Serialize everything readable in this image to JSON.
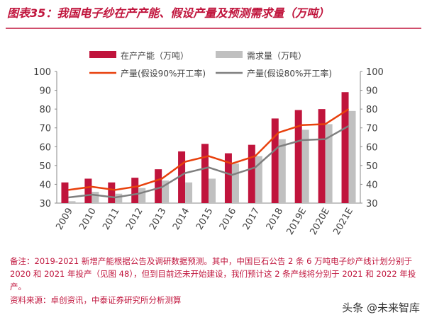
{
  "chart_data": {
    "type": "bar",
    "title": "图表35：我国电子纱在产产能、假设产量及预测需求量（万吨）",
    "categories": [
      "2009",
      "2010",
      "2011",
      "2012",
      "2013",
      "2014",
      "2015",
      "2016",
      "2017",
      "2018",
      "2019E",
      "2020E",
      "2021E"
    ],
    "series": [
      {
        "name": "在产产能（万吨）",
        "type": "bar",
        "color": "#c0143c",
        "values": [
          41,
          43,
          41,
          43.5,
          48,
          57.5,
          61.5,
          56.5,
          61,
          75,
          79.5,
          80,
          89
        ]
      },
      {
        "name": "需求量（万吨）",
        "type": "bar",
        "color": "#c0c0c0",
        "values": [
          31,
          36,
          35,
          38,
          42,
          41,
          43,
          51,
          55,
          64,
          69,
          72,
          79
        ]
      },
      {
        "name": "产量(假设90%开工率)",
        "type": "line",
        "color": "#e8400c",
        "values": [
          37,
          38.7,
          37,
          39,
          43,
          52,
          55,
          51,
          55,
          67.5,
          71.5,
          72,
          80
        ]
      },
      {
        "name": "产量(假设80%开工率)",
        "type": "line",
        "color": "#7f7f7f",
        "values": [
          33,
          34.5,
          33,
          35,
          38.5,
          46,
          49,
          45,
          49,
          60,
          63.5,
          64,
          71
        ]
      }
    ],
    "ylim": [
      30,
      100
    ],
    "yticks": [
      30,
      40,
      50,
      60,
      70,
      80,
      90,
      100
    ],
    "y2lim": [
      30,
      100
    ],
    "y2ticks": [
      30,
      40,
      50,
      60,
      70,
      80,
      90,
      100
    ]
  },
  "notes": "备注：2019-2021 新增产能根据公告及调研数据预测。其中，中国巨石公告 2 条 6 万吨电子纱产线计划分别于 2020 和 2021 年投产（见图 48），但到目前还未开始建设，我们预计这 2 条产线将分别于 2021 和 2022 年投产。",
  "source": "资料来源：卓创资讯，中泰证券研究所分析测算",
  "watermark": "头条 @未来智库"
}
